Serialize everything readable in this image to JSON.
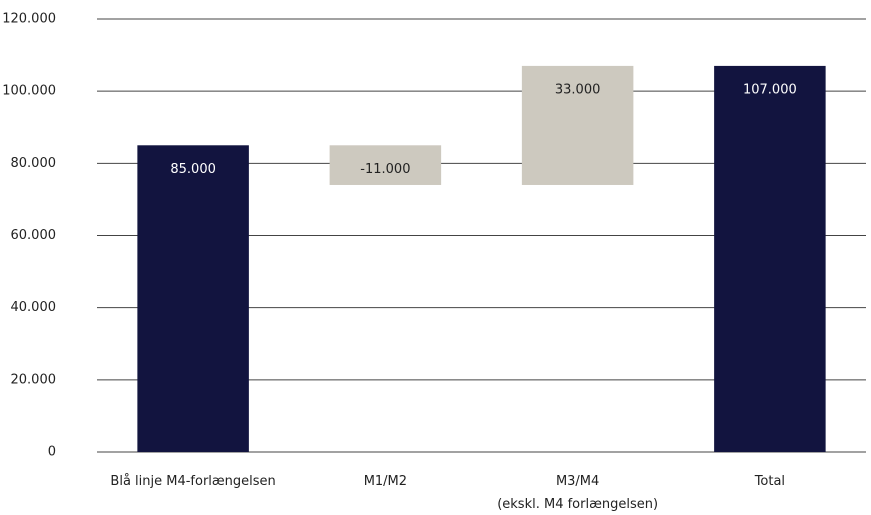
{
  "chart_data": {
    "type": "waterfall",
    "categories": [
      "Blå linje M4-forlængelsen",
      "M1/M2",
      "M3/M4\n(ekskl. M4 forlængelsen)",
      "Total"
    ],
    "values": [
      85000,
      -11000,
      33000,
      107000
    ],
    "value_labels": [
      "85.000",
      "-11.000",
      "33.000",
      "107.000"
    ],
    "colors": [
      "#12143f",
      "#cdc9bf",
      "#cdc9bf",
      "#12143f"
    ],
    "ylim": [
      0,
      120000
    ],
    "yticks": [
      0,
      {
        "value": 20000,
        "label": "20.000"
      },
      {
        "value": 40000,
        "label": "40.000"
      },
      {
        "value": 60000,
        "label": "60.000"
      },
      {
        "value": 80000,
        "label": "80.000"
      },
      {
        "value": 100000,
        "label": "100.000"
      },
      {
        "value": 120000,
        "label": "120.000"
      }
    ],
    "grid": true
  }
}
